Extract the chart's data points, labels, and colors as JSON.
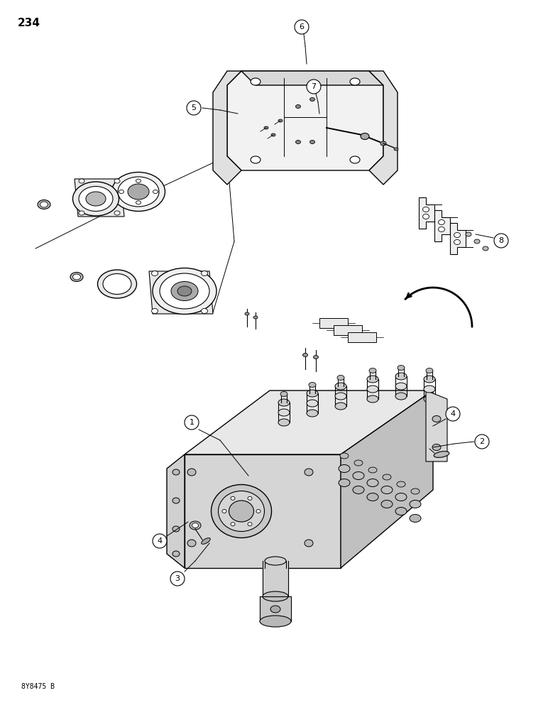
{
  "page_number": "234",
  "footer_text": "8Y8475 B",
  "background_color": "#ffffff",
  "line_color": "#000000",
  "label_color": "#000000",
  "fig_width": 7.72,
  "fig_height": 10.0
}
